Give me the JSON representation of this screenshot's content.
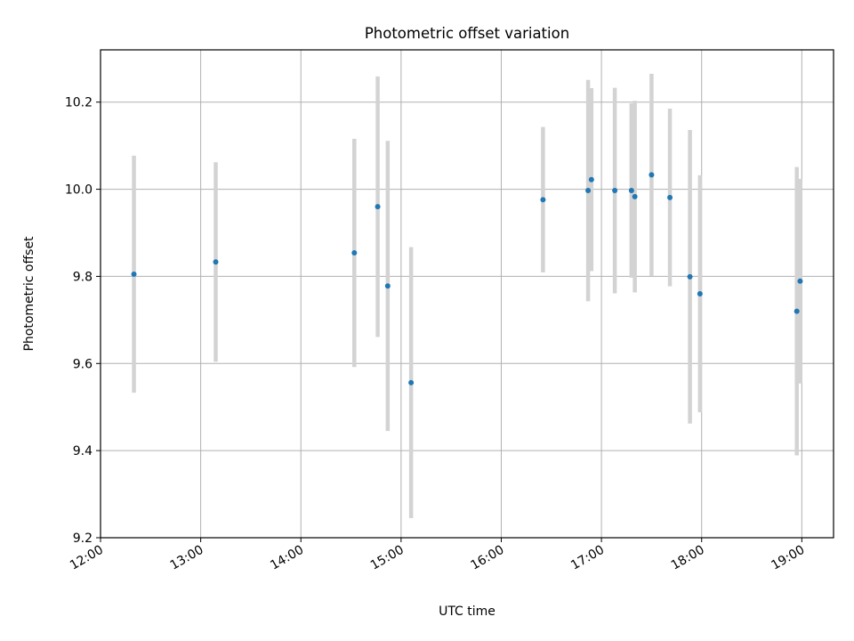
{
  "chart_data": {
    "type": "scatter",
    "title": "Photometric offset variation",
    "xlabel": "UTC time",
    "ylabel": "Photometric offset",
    "x_ticks": [
      "12:00",
      "13:00",
      "14:00",
      "15:00",
      "16:00",
      "17:00",
      "18:00",
      "19:00"
    ],
    "y_ticks": [
      "9.2",
      "9.4",
      "9.6",
      "9.8",
      "10.0",
      "10.2"
    ],
    "xlim": [
      "12:00",
      "19:19"
    ],
    "ylim": [
      9.2,
      10.32
    ],
    "grid": true,
    "legend": "none",
    "colors": {
      "points": "#1f77b4",
      "errorbars": "#d3d3d3",
      "grid": "#b0b0b0"
    },
    "series": [
      {
        "points": [
          {
            "x": "12:20",
            "y": 9.805,
            "yerr": 0.272
          },
          {
            "x": "13:09",
            "y": 9.833,
            "yerr": 0.229
          },
          {
            "x": "14:32",
            "y": 9.854,
            "yerr": 0.262
          },
          {
            "x": "14:46",
            "y": 9.96,
            "yerr": 0.299
          },
          {
            "x": "14:52",
            "y": 9.778,
            "yerr": 0.333
          },
          {
            "x": "15:06",
            "y": 9.556,
            "yerr": 0.311
          },
          {
            "x": "16:25",
            "y": 9.976,
            "yerr": 0.167
          },
          {
            "x": "16:52",
            "y": 9.997,
            "yerr": 0.254
          },
          {
            "x": "16:54",
            "y": 10.022,
            "yerr": 0.21
          },
          {
            "x": "17:08",
            "y": 9.997,
            "yerr": 0.236
          },
          {
            "x": "17:18",
            "y": 9.997,
            "yerr": 0.2
          },
          {
            "x": "17:20",
            "y": 9.983,
            "yerr": 0.22
          },
          {
            "x": "17:30",
            "y": 10.033,
            "yerr": 0.232
          },
          {
            "x": "17:41",
            "y": 9.981,
            "yerr": 0.204
          },
          {
            "x": "17:53",
            "y": 9.799,
            "yerr": 0.337
          },
          {
            "x": "17:59",
            "y": 9.76,
            "yerr": 0.272
          },
          {
            "x": "18:57",
            "y": 9.72,
            "yerr": 0.331
          },
          {
            "x": "18:59",
            "y": 9.789,
            "yerr": 0.235
          }
        ]
      }
    ]
  }
}
